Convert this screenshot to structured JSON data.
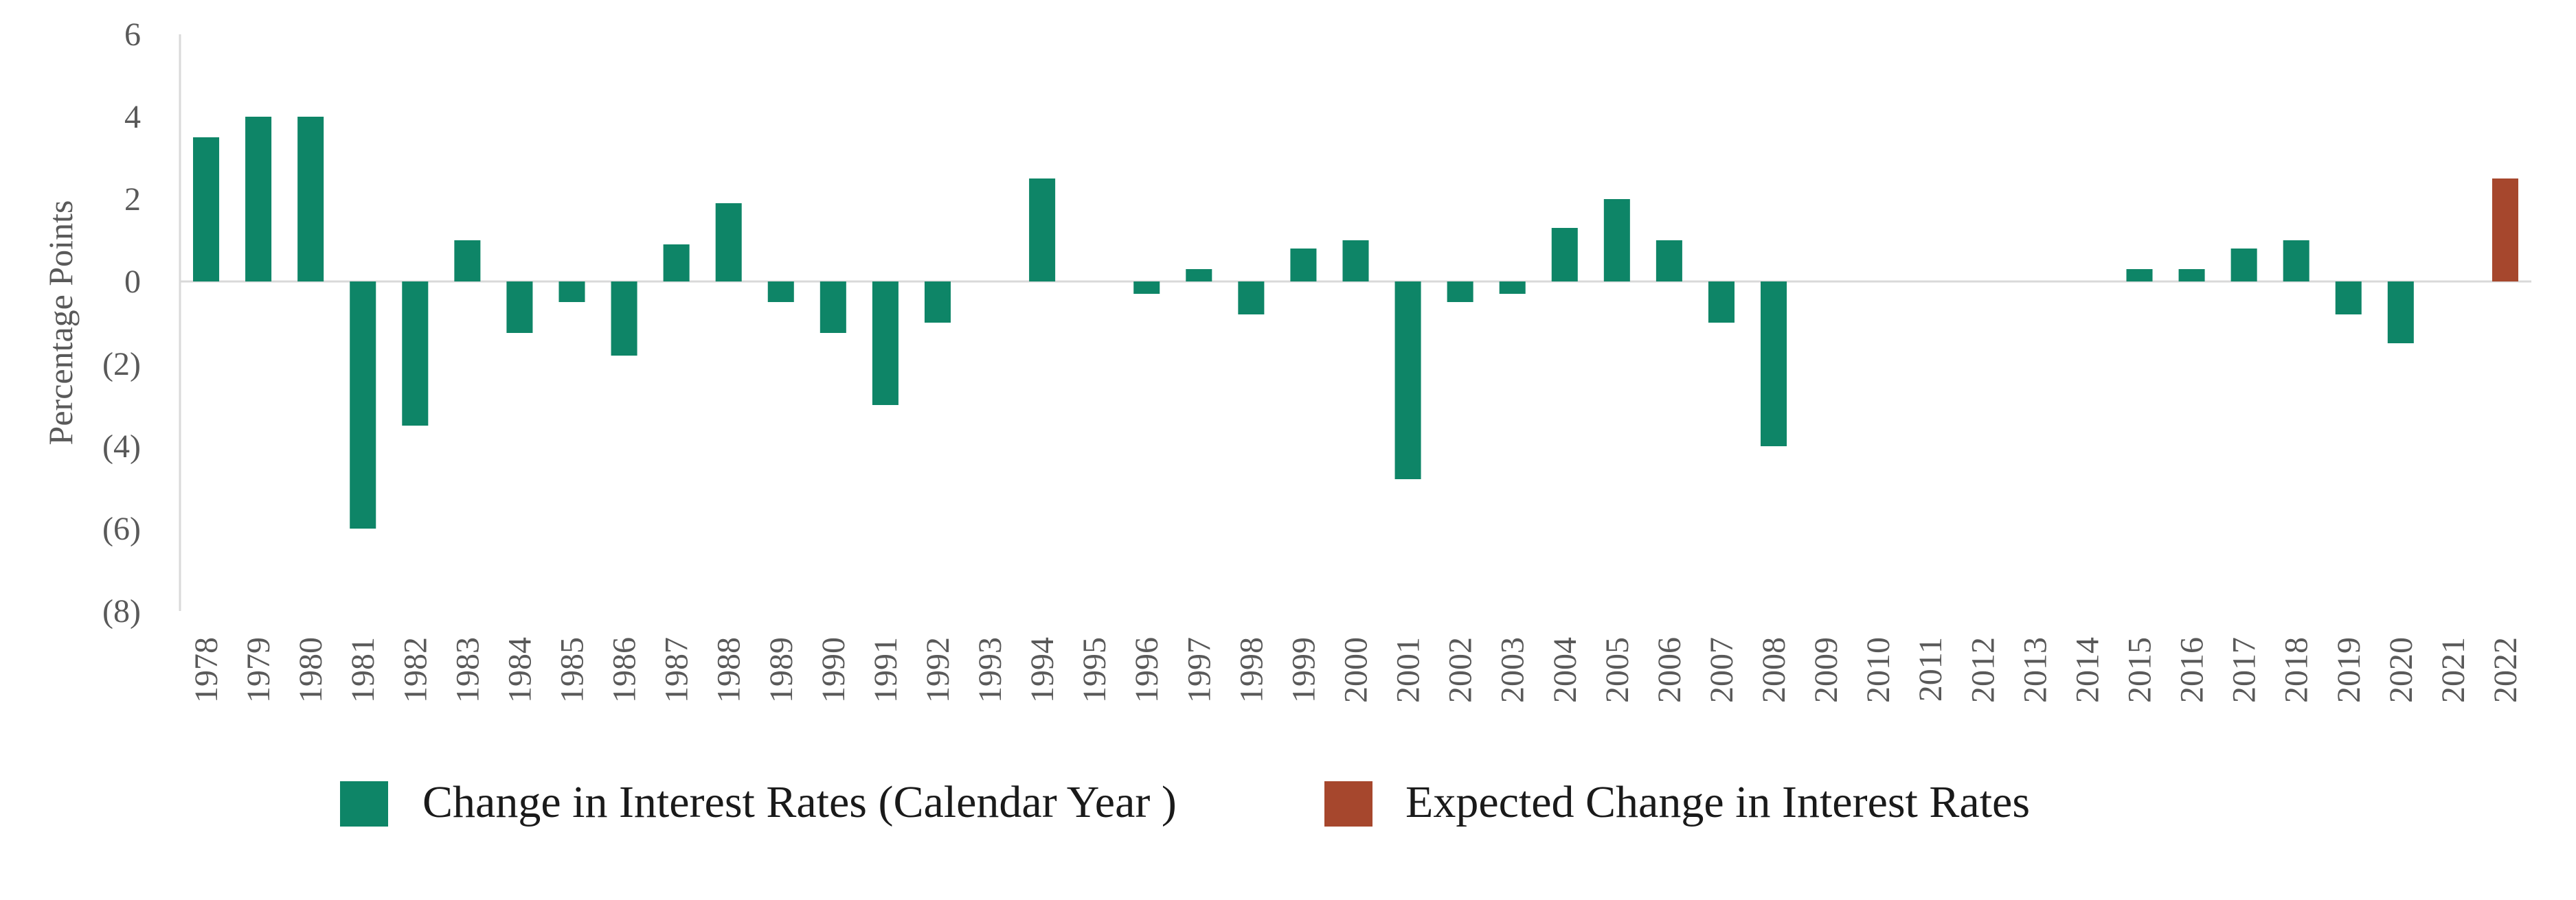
{
  "chart_data": {
    "type": "bar",
    "title": "",
    "xlabel": "",
    "ylabel": "Percentage Points",
    "ylim": [
      -8,
      6
    ],
    "yticks": [
      6,
      4,
      2,
      0,
      -2,
      -4,
      -6,
      -8
    ],
    "ytick_labels": [
      "6",
      "4",
      "2",
      "0",
      "(2)",
      "(4)",
      "(6)",
      "(8)"
    ],
    "grid": false,
    "legend_position": "bottom",
    "categories": [
      "1978",
      "1979",
      "1980",
      "1981",
      "1982",
      "1983",
      "1984",
      "1985",
      "1986",
      "1987",
      "1988",
      "1989",
      "1990",
      "1991",
      "1992",
      "1993",
      "1994",
      "1995",
      "1996",
      "1997",
      "1998",
      "1999",
      "2000",
      "2001",
      "2002",
      "2003",
      "2004",
      "2005",
      "2006",
      "2007",
      "2008",
      "2009",
      "2010",
      "2011",
      "2012",
      "2013",
      "2014",
      "2015",
      "2016",
      "2017",
      "2018",
      "2019",
      "2020",
      "2021",
      "2022"
    ],
    "series": [
      {
        "name": "Change in Interest Rates (Calendar Year )",
        "color": "#0E8567",
        "values": [
          3.5,
          4.0,
          4.0,
          -6.0,
          -3.5,
          1.0,
          -1.25,
          -0.5,
          -1.8,
          0.9,
          1.9,
          -0.5,
          -1.25,
          -3.0,
          -1.0,
          0,
          2.5,
          0,
          -0.3,
          0.3,
          -0.8,
          0.8,
          1.0,
          -4.8,
          -0.5,
          -0.3,
          1.3,
          2.0,
          1.0,
          -1.0,
          -4.0,
          0,
          0,
          0,
          0,
          0,
          0,
          0.3,
          0.3,
          0.8,
          1.0,
          -0.8,
          -1.5,
          0,
          null
        ]
      },
      {
        "name": "Expected Change in Interest Rates",
        "color": "#A6472D",
        "values": [
          null,
          null,
          null,
          null,
          null,
          null,
          null,
          null,
          null,
          null,
          null,
          null,
          null,
          null,
          null,
          null,
          null,
          null,
          null,
          null,
          null,
          null,
          null,
          null,
          null,
          null,
          null,
          null,
          null,
          null,
          null,
          null,
          null,
          null,
          null,
          null,
          null,
          null,
          null,
          null,
          null,
          null,
          null,
          null,
          2.5
        ]
      }
    ]
  }
}
